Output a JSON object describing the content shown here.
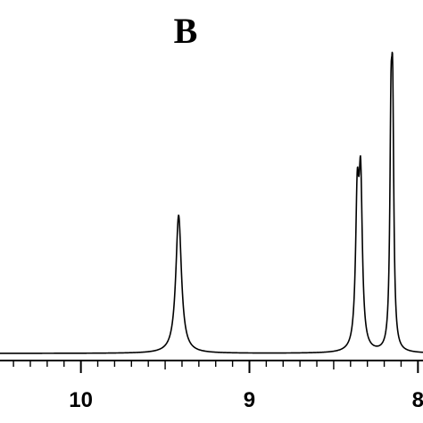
{
  "panel_label": "B",
  "chart_data": {
    "type": "line",
    "title": "",
    "xlabel": "",
    "ylabel": "",
    "x_reversed": true,
    "xlim": [
      10.48,
      7.97
    ],
    "ylim": [
      0,
      1
    ],
    "x_ticks": [
      10,
      9,
      8
    ],
    "x_tick_labels": [
      "10",
      "9",
      "8"
    ],
    "x_minor_tick_step": 0.1,
    "peaks": [
      {
        "center": 9.42,
        "height": 0.43,
        "width": 0.02
      },
      {
        "center": 8.36,
        "height": 0.44,
        "width": 0.012
      },
      {
        "center": 8.34,
        "height": 0.49,
        "width": 0.012
      },
      {
        "center": 8.16,
        "height": 0.61,
        "width": 0.008
      },
      {
        "center": 8.15,
        "height": 0.67,
        "width": 0.008
      }
    ],
    "grid": false,
    "line_color": "#000000"
  }
}
